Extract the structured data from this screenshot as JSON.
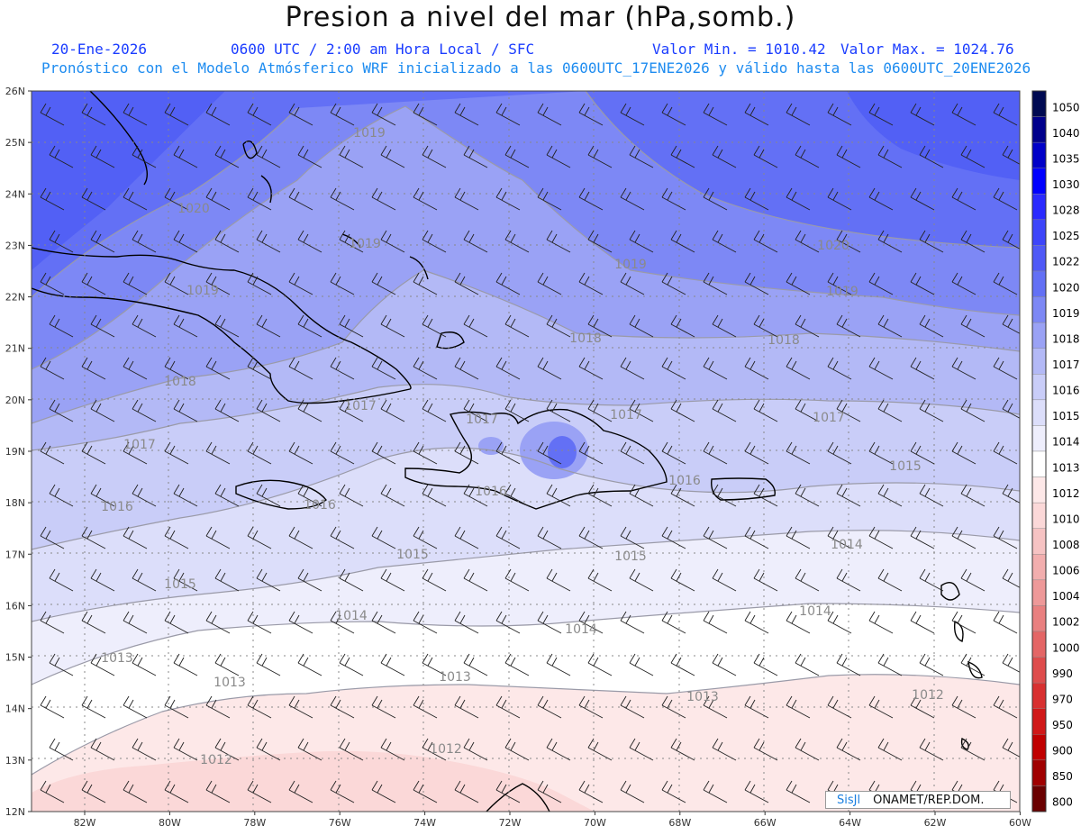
{
  "header": {
    "title": "Presion a nivel del mar (hPa,somb.)",
    "date": "20-Ene-2026",
    "time": "0600 UTC / 2:00 am Hora Local / SFC",
    "val_min": "Valor Min. = 1010.42",
    "val_max": "Valor Max. = 1024.76",
    "forecast_line": "Pronóstico con el Modelo Atmósferico WRF inicializado a las 0600UTC_17ENE2026 y válido hasta las  0600UTC_20ENE2026"
  },
  "axes": {
    "lat_labels": [
      "26N",
      "25N",
      "24N",
      "23N",
      "22N",
      "21N",
      "20N",
      "19N",
      "18N",
      "17N",
      "16N",
      "15N",
      "14N",
      "13N",
      "12N"
    ],
    "lon_labels": [
      "82W",
      "80W",
      "78W",
      "76W",
      "74W",
      "72W",
      "70W",
      "68W",
      "66W",
      "64W",
      "62W",
      "60W"
    ]
  },
  "colorbar": {
    "levels": [
      "1050",
      "1040",
      "1035",
      "1030",
      "1028",
      "1025",
      "1022",
      "1020",
      "1019",
      "1018",
      "1017",
      "1016",
      "1015",
      "1014",
      "1013",
      "1012",
      "1010",
      "1008",
      "1006",
      "1004",
      "1002",
      "1000",
      "990",
      "970",
      "950",
      "900",
      "850",
      "800"
    ],
    "colors": [
      "#000a52",
      "#00008c",
      "#0000c8",
      "#0000ff",
      "#2a2aff",
      "#3d45fa",
      "#4f59f7",
      "#6370f5",
      "#7d88f5",
      "#9aa2f5",
      "#b3b9f6",
      "#c9cdf8",
      "#dcdefa",
      "#eeeefc",
      "#ffffff",
      "#fde8e8",
      "#fbd8d8",
      "#f6c3c3",
      "#f2aeae",
      "#ee9999",
      "#e98080",
      "#e46666",
      "#de4c4c",
      "#d83030",
      "#d01818",
      "#c00000",
      "#a00000",
      "#6a0000"
    ]
  },
  "isobar_labels": [
    "1019",
    "1020",
    "1019",
    "1019",
    "1019",
    "1020",
    "1019",
    "1018",
    "1018",
    "1018",
    "1017",
    "1017",
    "1017",
    "1017",
    "1017",
    "1016",
    "1016",
    "1016",
    "1016",
    "1015",
    "1015",
    "1015",
    "1015",
    "1014",
    "1014",
    "1014",
    "1014",
    "1013",
    "1013",
    "1013",
    "1013",
    "1012",
    "1012",
    "1012"
  ],
  "credit": {
    "system": "SisJl",
    "org": "ONAMET/REP.DOM."
  }
}
